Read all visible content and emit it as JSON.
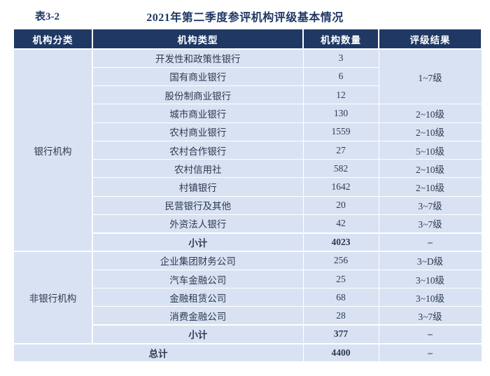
{
  "caption": {
    "label": "表3-2",
    "title": "2021年第二季度参评机构评级基本情况"
  },
  "table": {
    "headers": [
      "机构分类",
      "机构类型",
      "机构数量",
      "评级结果"
    ],
    "groups": [
      {
        "category": "银行机构",
        "rows": [
          {
            "type": "开发性和政策性银行",
            "count": "3",
            "rating": "1~7级"
          },
          {
            "type": "国有商业银行",
            "count": "6"
          },
          {
            "type": "股份制商业银行",
            "count": "12"
          },
          {
            "type": "城市商业银行",
            "count": "130",
            "rating": "2~10级"
          },
          {
            "type": "农村商业银行",
            "count": "1559",
            "rating": "2~10级"
          },
          {
            "type": "农村合作银行",
            "count": "27",
            "rating": "5~10级"
          },
          {
            "type": "农村信用社",
            "count": "582",
            "rating": "2~10级"
          },
          {
            "type": "村镇银行",
            "count": "1642",
            "rating": "2~10级"
          },
          {
            "type": "民营银行及其他",
            "count": "20",
            "rating": "3~7级"
          },
          {
            "type": "外资法人银行",
            "count": "42",
            "rating": "3~7级"
          }
        ],
        "subtotal": {
          "label": "小计",
          "count": "4023",
          "rating": "–"
        }
      },
      {
        "category": "非银行机构",
        "rows": [
          {
            "type": "企业集团财务公司",
            "count": "256",
            "rating": "3~D级"
          },
          {
            "type": "汽车金融公司",
            "count": "25",
            "rating": "3~10级"
          },
          {
            "type": "金融租赁公司",
            "count": "68",
            "rating": "3~10级"
          },
          {
            "type": "消费金融公司",
            "count": "28",
            "rating": "3~7级"
          }
        ],
        "subtotal": {
          "label": "小计",
          "count": "377",
          "rating": "–"
        }
      }
    ],
    "total": {
      "label": "总计",
      "count": "4400",
      "rating": "–"
    }
  },
  "colors": {
    "header_bg": "#1f3864",
    "body_bg": "#d9e2f3",
    "grid_line": "#ffffff",
    "title_text": "#1f3864",
    "body_text": "#2e3a50",
    "header_text": "#ffffff"
  }
}
